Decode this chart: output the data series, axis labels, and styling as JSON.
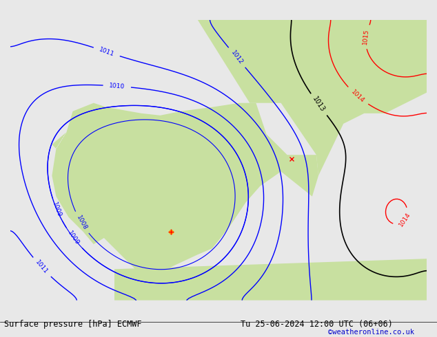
{
  "title_left": "Surface pressure [hPa] ECMWF",
  "title_right": "Tu 25-06-2024 12:00 UTC (06+06)",
  "credit": "©weatheronline.co.uk",
  "background_color": "#e8e8e8",
  "land_green_color": "#c8e0a0",
  "fig_width": 6.34,
  "fig_height": 4.9,
  "dpi": 100,
  "bottom_bar_color": "#f0f0f0",
  "bottom_text_color": "#000000",
  "credit_color": "#0000cc"
}
